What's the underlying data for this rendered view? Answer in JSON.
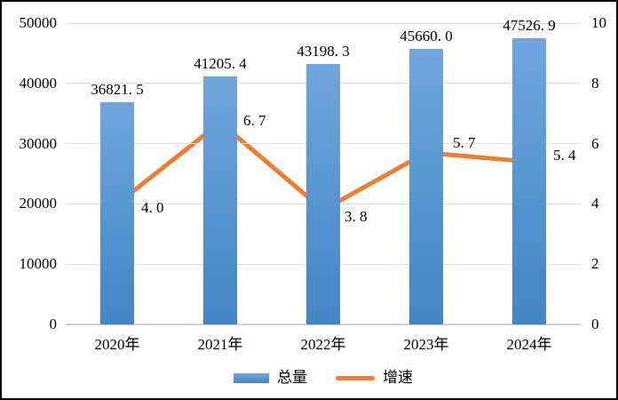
{
  "chart_data": {
    "type": "bar+line",
    "title": "",
    "xlabel": "",
    "ylabel": "",
    "categories": [
      "2020年",
      "2021年",
      "2022年",
      "2023年",
      "2024年"
    ],
    "series": [
      {
        "name": "总量",
        "type": "bar",
        "axis": "left",
        "values": [
          36821.5,
          41205.4,
          43198.3,
          45660.0,
          47526.9
        ],
        "labels": [
          "36821. 5",
          "41205. 4",
          "43198. 3",
          "45660. 0",
          "47526. 9"
        ],
        "color_top": "#6FA6DC",
        "color_bottom": "#4285C6"
      },
      {
        "name": "增速",
        "type": "line",
        "axis": "right",
        "values": [
          4.0,
          6.7,
          3.8,
          5.7,
          5.4
        ],
        "labels": [
          "4. 0",
          "6. 7",
          "3. 8",
          "5. 7",
          "5. 4"
        ],
        "color": "#ED7D31",
        "label_offsets": [
          [
            27,
            5
          ],
          [
            26,
            -2
          ],
          [
            24,
            8
          ],
          [
            30,
            -11
          ],
          [
            27,
            -7
          ]
        ]
      }
    ],
    "left_axis": {
      "min": 0,
      "max": 50000,
      "ticks": [
        "0",
        "10000",
        "20000",
        "30000",
        "40000",
        "50000"
      ]
    },
    "right_axis": {
      "min": 0,
      "max": 10,
      "ticks": [
        "0",
        "2",
        "4",
        "6",
        "8",
        "10"
      ]
    },
    "grid": true,
    "legend_position": "bottom",
    "gridline_color": "#dde1e6",
    "baseline_color": "#ccd0d5",
    "text_color": "#000000"
  }
}
